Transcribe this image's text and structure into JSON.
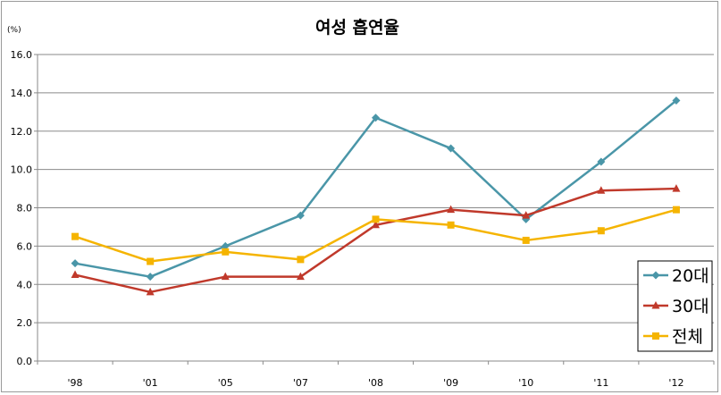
{
  "chart_data": {
    "type": "line",
    "title": "여성 흡연율",
    "unit_label": "(%)",
    "categories": [
      "'98",
      "'01",
      "'05",
      "'07",
      "'08",
      "'09",
      "'10",
      "'11",
      "'12"
    ],
    "ylim": [
      0,
      16
    ],
    "yticks": [
      "0.0",
      "2.0",
      "4.0",
      "6.0",
      "8.0",
      "10.0",
      "12.0",
      "14.0",
      "16.0"
    ],
    "grid": true,
    "legend_position": "bottom-right",
    "series": [
      {
        "name": "20대",
        "color": "#4a96a8",
        "marker": "diamond",
        "values": [
          5.1,
          4.4,
          6.0,
          7.6,
          12.7,
          11.1,
          7.4,
          10.4,
          13.6
        ]
      },
      {
        "name": "30대",
        "color": "#c0392b",
        "marker": "triangle",
        "values": [
          4.5,
          3.6,
          4.4,
          4.4,
          7.1,
          7.9,
          7.6,
          8.9,
          9.0
        ]
      },
      {
        "name": "전체",
        "color": "#f5b400",
        "marker": "square",
        "values": [
          6.5,
          5.2,
          5.7,
          5.3,
          7.4,
          7.1,
          6.3,
          6.8,
          7.9
        ]
      }
    ]
  }
}
